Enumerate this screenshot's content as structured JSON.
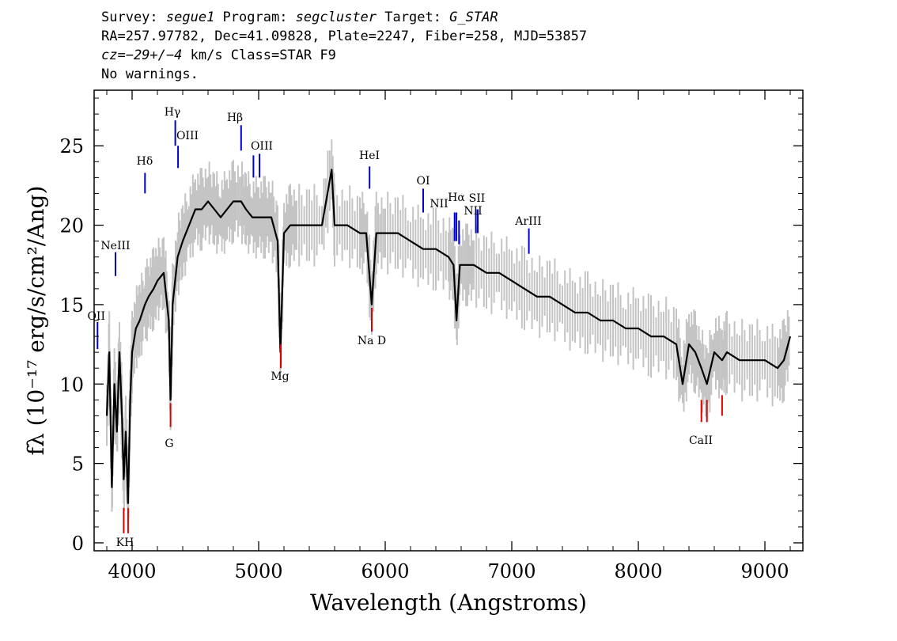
{
  "header": {
    "survey_label": "Survey: ",
    "survey": "segue1",
    "program_label": " Program: ",
    "program": "segcluster",
    "target_label": " Target: ",
    "target": "G_STAR",
    "line2": "RA=257.97782, Dec=41.09828, Plate=2247, Fiber=258, MJD=53857",
    "cz_prefix": "cz=",
    "cz_value": "−29+/−4",
    "cz_suffix": " km/s Class=STAR F9",
    "line4": "No warnings."
  },
  "chart_data": {
    "type": "line",
    "title": "",
    "xlabel": "Wavelength (Angstroms)",
    "ylabel": "fλ (10⁻¹⁷ erg/s/cm²/Ang)",
    "xlim": [
      3700,
      9300
    ],
    "ylim": [
      -0.5,
      28.5
    ],
    "xticks": [
      4000,
      5000,
      6000,
      7000,
      8000,
      9000
    ],
    "yticks": [
      0,
      5,
      10,
      15,
      20,
      25
    ],
    "grid": false,
    "colors": {
      "flux": "#000000",
      "error_band": "#c4c4c4",
      "emission": "#0000cc",
      "absorption": "#dd0000"
    },
    "series": [
      {
        "name": "flux",
        "x": [
          3800,
          3820,
          3840,
          3860,
          3880,
          3900,
          3920,
          3934,
          3950,
          3968,
          3985,
          4000,
          4030,
          4060,
          4101,
          4130,
          4170,
          4200,
          4250,
          4290,
          4304,
          4320,
          4360,
          4400,
          4450,
          4500,
          4550,
          4600,
          4650,
          4700,
          4750,
          4800,
          4861,
          4900,
          4950,
          5000,
          5050,
          5100,
          5150,
          5172,
          5200,
          5250,
          5300,
          5400,
          5500,
          5577,
          5600,
          5700,
          5800,
          5850,
          5893,
          5930,
          6000,
          6100,
          6200,
          6300,
          6400,
          6500,
          6540,
          6563,
          6590,
          6650,
          6700,
          6800,
          6900,
          7000,
          7100,
          7200,
          7300,
          7400,
          7500,
          7600,
          7700,
          7800,
          7900,
          8000,
          8100,
          8200,
          8300,
          8350,
          8400,
          8450,
          8498,
          8542,
          8600,
          8662,
          8700,
          8800,
          8900,
          9000,
          9100,
          9150,
          9200
        ],
        "y": [
          8,
          12,
          3.5,
          10,
          7,
          12,
          8,
          4,
          7,
          2.5,
          9,
          12,
          13.5,
          14,
          15,
          15.5,
          16,
          16.5,
          17,
          14,
          9,
          15,
          18,
          19,
          20,
          21,
          21,
          21.5,
          21,
          20.5,
          21,
          21.5,
          21.5,
          21,
          20.5,
          20.5,
          20.5,
          20.5,
          19,
          12,
          19.5,
          20,
          20,
          20,
          20,
          23.5,
          20,
          20,
          19.5,
          19.5,
          15,
          19.5,
          19.5,
          19.5,
          19,
          18.5,
          18.5,
          18,
          17.5,
          14,
          17.5,
          17.5,
          17.5,
          17,
          17,
          16.5,
          16,
          15.5,
          15.5,
          15,
          14.5,
          14.5,
          14,
          14,
          13.5,
          13.5,
          13,
          13,
          12.5,
          10,
          12.5,
          12,
          11,
          10,
          12,
          11.5,
          12,
          11.5,
          11.5,
          11.5,
          11,
          11.5,
          13
        ]
      }
    ],
    "emission_lines": [
      {
        "label": "OII",
        "x": 3727
      },
      {
        "label": "NeIII",
        "x": 3869
      },
      {
        "label": "Hδ",
        "x": 4102
      },
      {
        "label": "Hγ",
        "x": 4341
      },
      {
        "label": "OIII",
        "x": 4363
      },
      {
        "label": "Hβ",
        "x": 4861
      },
      {
        "label": "OIII",
        "x": 4959
      },
      {
        "label": "OIII",
        "x": 5007
      },
      {
        "label": "HeI",
        "x": 5876
      },
      {
        "label": "OI",
        "x": 6300
      },
      {
        "label": "NII",
        "x": 6548
      },
      {
        "label": "Hα",
        "x": 6563
      },
      {
        "label": "NII",
        "x": 6583
      },
      {
        "label": "SII",
        "x": 6716
      },
      {
        "label": "SII",
        "x": 6731
      },
      {
        "label": "ArIII",
        "x": 7135
      }
    ],
    "absorption_lines": [
      {
        "label": "K",
        "x": 3934
      },
      {
        "label": "H",
        "x": 3968
      },
      {
        "label": "G",
        "x": 4304
      },
      {
        "label": "Mg",
        "x": 5175
      },
      {
        "label": "Na D",
        "x": 5894
      },
      {
        "label": "CaII",
        "x": 8498
      },
      {
        "label": "CaII",
        "x": 8542
      },
      {
        "label": "CaII",
        "x": 8662
      }
    ],
    "line_text": {
      "OII": "OII",
      "NeIII": "NeIII",
      "Hdelta": "Hδ",
      "Hgamma": "Hγ",
      "OIII_a": "OIII",
      "Hbeta": "Hβ",
      "OIII_b": "OIII",
      "HeI": "HeI",
      "OI": "OI",
      "NII_a": "NII",
      "Halpha": "Hα",
      "SII": "SII",
      "NII_b": "NII",
      "ArIII": "ArIII",
      "KH": "KH",
      "G": "G",
      "Mg": "Mg",
      "NaD": "Na D",
      "CaII": "CaII"
    }
  }
}
